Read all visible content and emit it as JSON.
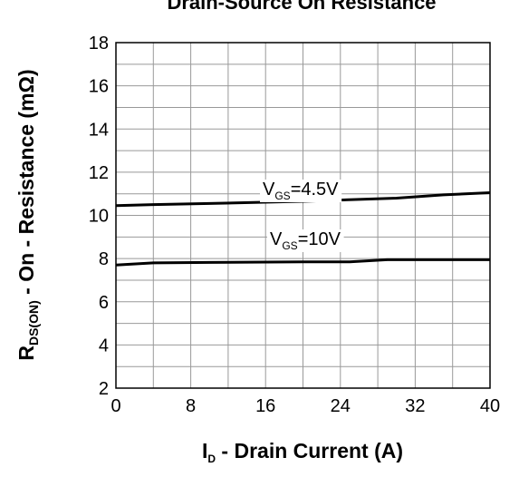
{
  "chart_data": {
    "type": "line",
    "title": "Drain-Source On Resistance",
    "xlabel": {
      "main": "I",
      "sub": "D",
      "rest": " - Drain Current (A)"
    },
    "ylabel": {
      "main": "R",
      "sub": "DS(ON)",
      "rest": " - On - Resistance (mΩ)"
    },
    "xlim": [
      0,
      40
    ],
    "xticks": [
      0,
      8,
      16,
      24,
      32,
      40
    ],
    "ylim": [
      2,
      18
    ],
    "yticks": [
      2,
      4,
      6,
      8,
      10,
      12,
      14,
      16,
      18
    ],
    "grid": true,
    "color": "#000000",
    "series": [
      {
        "name": {
          "main": "V",
          "sub": "GS",
          "rest": "=4.5V"
        },
        "x": [
          0,
          4,
          10,
          20,
          30,
          35,
          40
        ],
        "values": [
          10.45,
          10.5,
          10.55,
          10.65,
          10.8,
          10.95,
          11.05
        ]
      },
      {
        "name": {
          "main": "V",
          "sub": "GS",
          "rest": "=10V"
        },
        "x": [
          0,
          4,
          10,
          20,
          25,
          29,
          40
        ],
        "values": [
          7.7,
          7.8,
          7.82,
          7.85,
          7.85,
          7.95,
          7.95
        ]
      }
    ]
  }
}
